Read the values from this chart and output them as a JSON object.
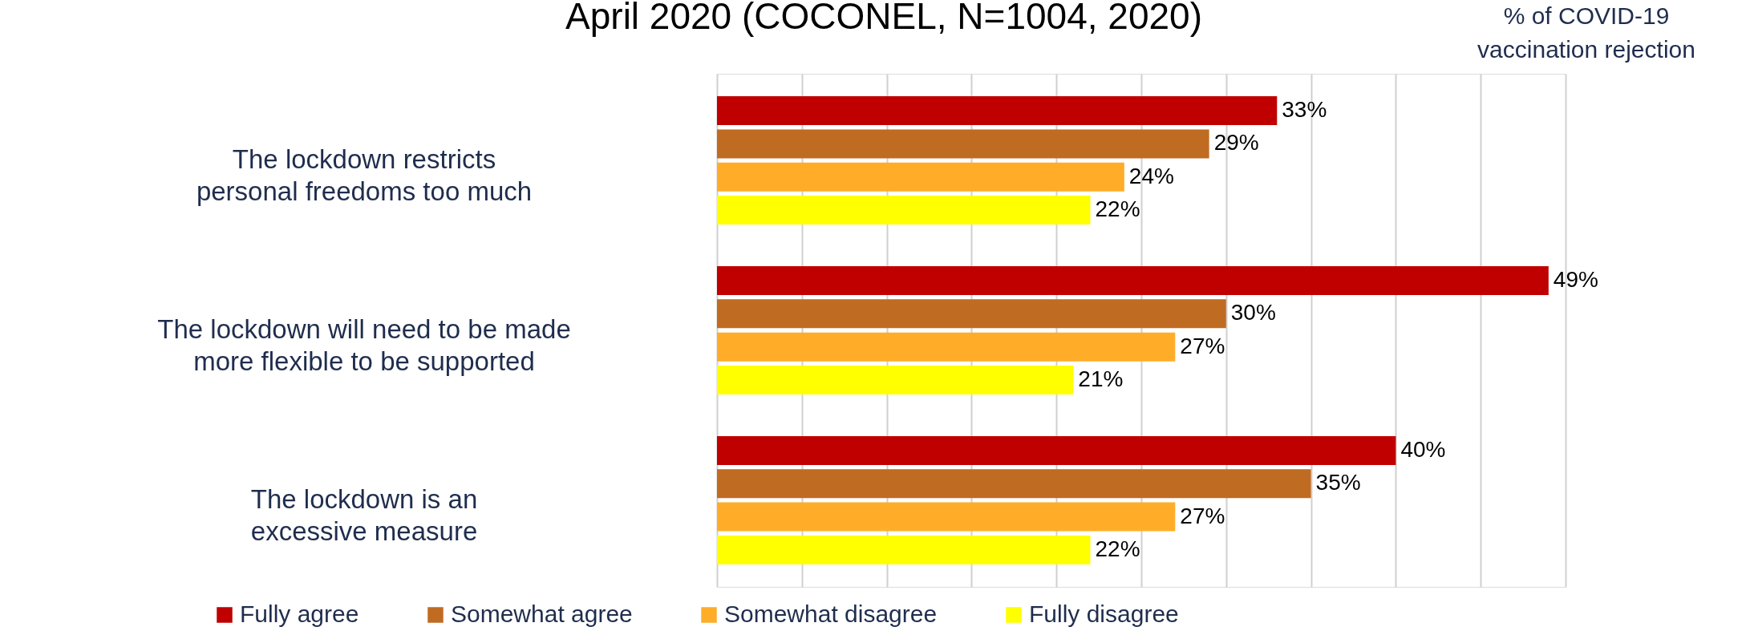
{
  "chart_data": {
    "type": "bar",
    "orientation": "horizontal",
    "title": "April 2020 (COCONEL, N=1004, 2020)",
    "annotations": [
      "% of COVID-19 vaccination rejection"
    ],
    "categories": [
      "The lockdown restricts personal freedoms too much",
      "The lockdown will need to be made more flexible to be supported",
      "The lockdown is an excessive measure"
    ],
    "series": [
      {
        "name": "Fully agree",
        "color": "#c00000",
        "values": [
          33,
          49,
          40
        ],
        "value_labels": [
          "33%",
          "49%",
          "40%"
        ]
      },
      {
        "name": "Somewhat agree",
        "color": "#c06b22",
        "values": [
          29,
          30,
          35
        ],
        "value_labels": [
          "29%",
          "30%",
          "35%"
        ]
      },
      {
        "name": "Somewhat disagree",
        "color": "#ffad29",
        "values": [
          24,
          27,
          27
        ],
        "value_labels": [
          "24%",
          "27%",
          "27%"
        ]
      },
      {
        "name": "Fully disagree",
        "color": "#ffff00",
        "values": [
          22,
          21,
          22
        ],
        "value_labels": [
          "22%",
          "21%",
          "22%"
        ]
      }
    ],
    "xlim": [
      0,
      50
    ],
    "xticks": [
      {
        "value": 0,
        "label": null
      },
      {
        "value": 5,
        "label": null
      },
      {
        "value": 10,
        "label": null
      },
      {
        "value": 15,
        "label": null
      },
      {
        "value": 20,
        "label": null
      },
      {
        "value": 25,
        "label": null
      },
      {
        "value": 30,
        "label": null
      },
      {
        "value": 35,
        "label": null
      },
      {
        "value": 40,
        "label": null
      },
      {
        "value": 45,
        "label": null
      },
      {
        "value": 50,
        "label": null
      }
    ],
    "grid": "x",
    "legend": "bottom",
    "tick_labels": "y"
  }
}
